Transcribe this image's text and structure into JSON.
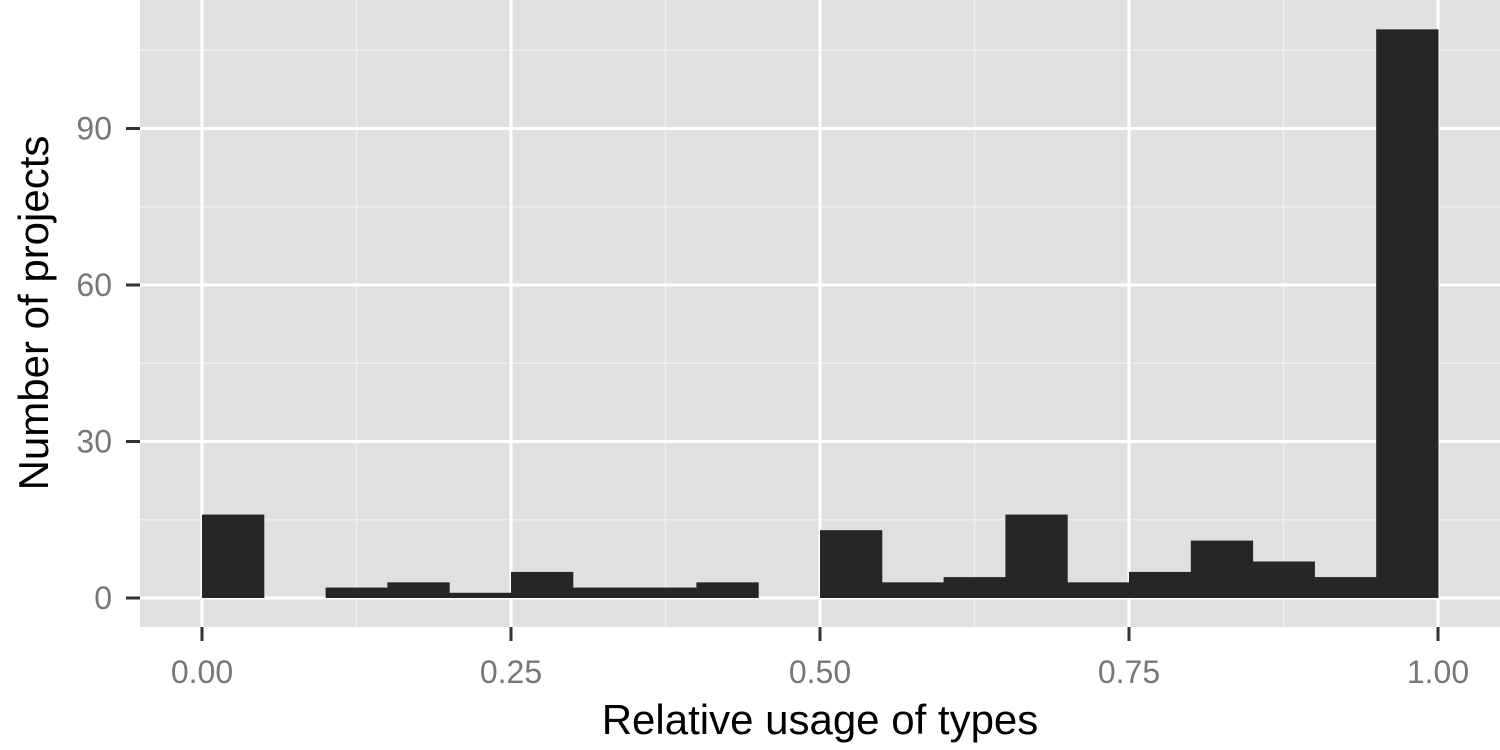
{
  "chart_data": {
    "type": "bar",
    "title": "",
    "xlabel": "Relative usage of types",
    "ylabel": "Number of projects",
    "xlim": [
      -0.05,
      1.05
    ],
    "ylim": [
      0,
      115
    ],
    "x_ticks": [
      0,
      0.25,
      0.5,
      0.75,
      1
    ],
    "x_tick_labels": [
      "0.00",
      "0.25",
      "0.50",
      "0.75",
      "1.00"
    ],
    "y_ticks": [
      0,
      30,
      60,
      90
    ],
    "y_tick_labels": [
      "0",
      "30",
      "60",
      "90"
    ],
    "bin_width": 0.05,
    "bins": [
      {
        "x0": 0.0,
        "x1": 0.05,
        "count": 16
      },
      {
        "x0": 0.05,
        "x1": 0.1,
        "count": 0
      },
      {
        "x0": 0.1,
        "x1": 0.15,
        "count": 2
      },
      {
        "x0": 0.15,
        "x1": 0.2,
        "count": 3
      },
      {
        "x0": 0.2,
        "x1": 0.25,
        "count": 1
      },
      {
        "x0": 0.25,
        "x1": 0.3,
        "count": 5
      },
      {
        "x0": 0.3,
        "x1": 0.35,
        "count": 2
      },
      {
        "x0": 0.35,
        "x1": 0.4,
        "count": 2
      },
      {
        "x0": 0.4,
        "x1": 0.45,
        "count": 3
      },
      {
        "x0": 0.45,
        "x1": 0.5,
        "count": 0
      },
      {
        "x0": 0.5,
        "x1": 0.55,
        "count": 13
      },
      {
        "x0": 0.55,
        "x1": 0.6,
        "count": 3
      },
      {
        "x0": 0.6,
        "x1": 0.65,
        "count": 4
      },
      {
        "x0": 0.65,
        "x1": 0.7,
        "count": 16
      },
      {
        "x0": 0.7,
        "x1": 0.75,
        "count": 3
      },
      {
        "x0": 0.75,
        "x1": 0.8,
        "count": 5
      },
      {
        "x0": 0.8,
        "x1": 0.85,
        "count": 11
      },
      {
        "x0": 0.85,
        "x1": 0.9,
        "count": 7
      },
      {
        "x0": 0.9,
        "x1": 0.95,
        "count": 4
      },
      {
        "x0": 0.95,
        "x1": 1.0,
        "count": 109
      }
    ],
    "grid": true,
    "colors": {
      "panel_background": "#e0e0e0",
      "grid_major": "#ffffff",
      "grid_minor": "#eeeeee",
      "bar_fill": "#262626",
      "tick_label": "#777777",
      "axis_title": "#000000"
    }
  }
}
